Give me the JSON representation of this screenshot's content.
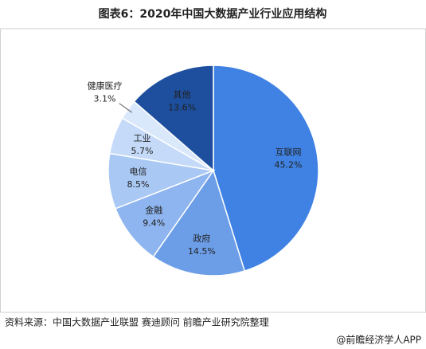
{
  "chart_data": {
    "type": "pie",
    "title": "图表6：2020年中国大数据产业行业应用结构",
    "categories": [
      "互联网",
      "政府",
      "金融",
      "电信",
      "工业",
      "健康医疗",
      "其他"
    ],
    "values": [
      45.2,
      14.5,
      9.4,
      8.5,
      5.7,
      3.1,
      13.6
    ],
    "value_labels": [
      "45.2%",
      "14.5%",
      "9.4%",
      "8.5%",
      "5.7%",
      "3.1%",
      "13.6%"
    ],
    "colors": [
      "#3f82e3",
      "#6c9ee8",
      "#8eb5ef",
      "#a9c8f4",
      "#c4daf8",
      "#dae8fb",
      "#1d4f9e"
    ],
    "source": "资料来源：中国大数据产业联盟 赛迪顾问 前瞻产业研究院整理",
    "footer": "@前瞻经济学人APP"
  }
}
